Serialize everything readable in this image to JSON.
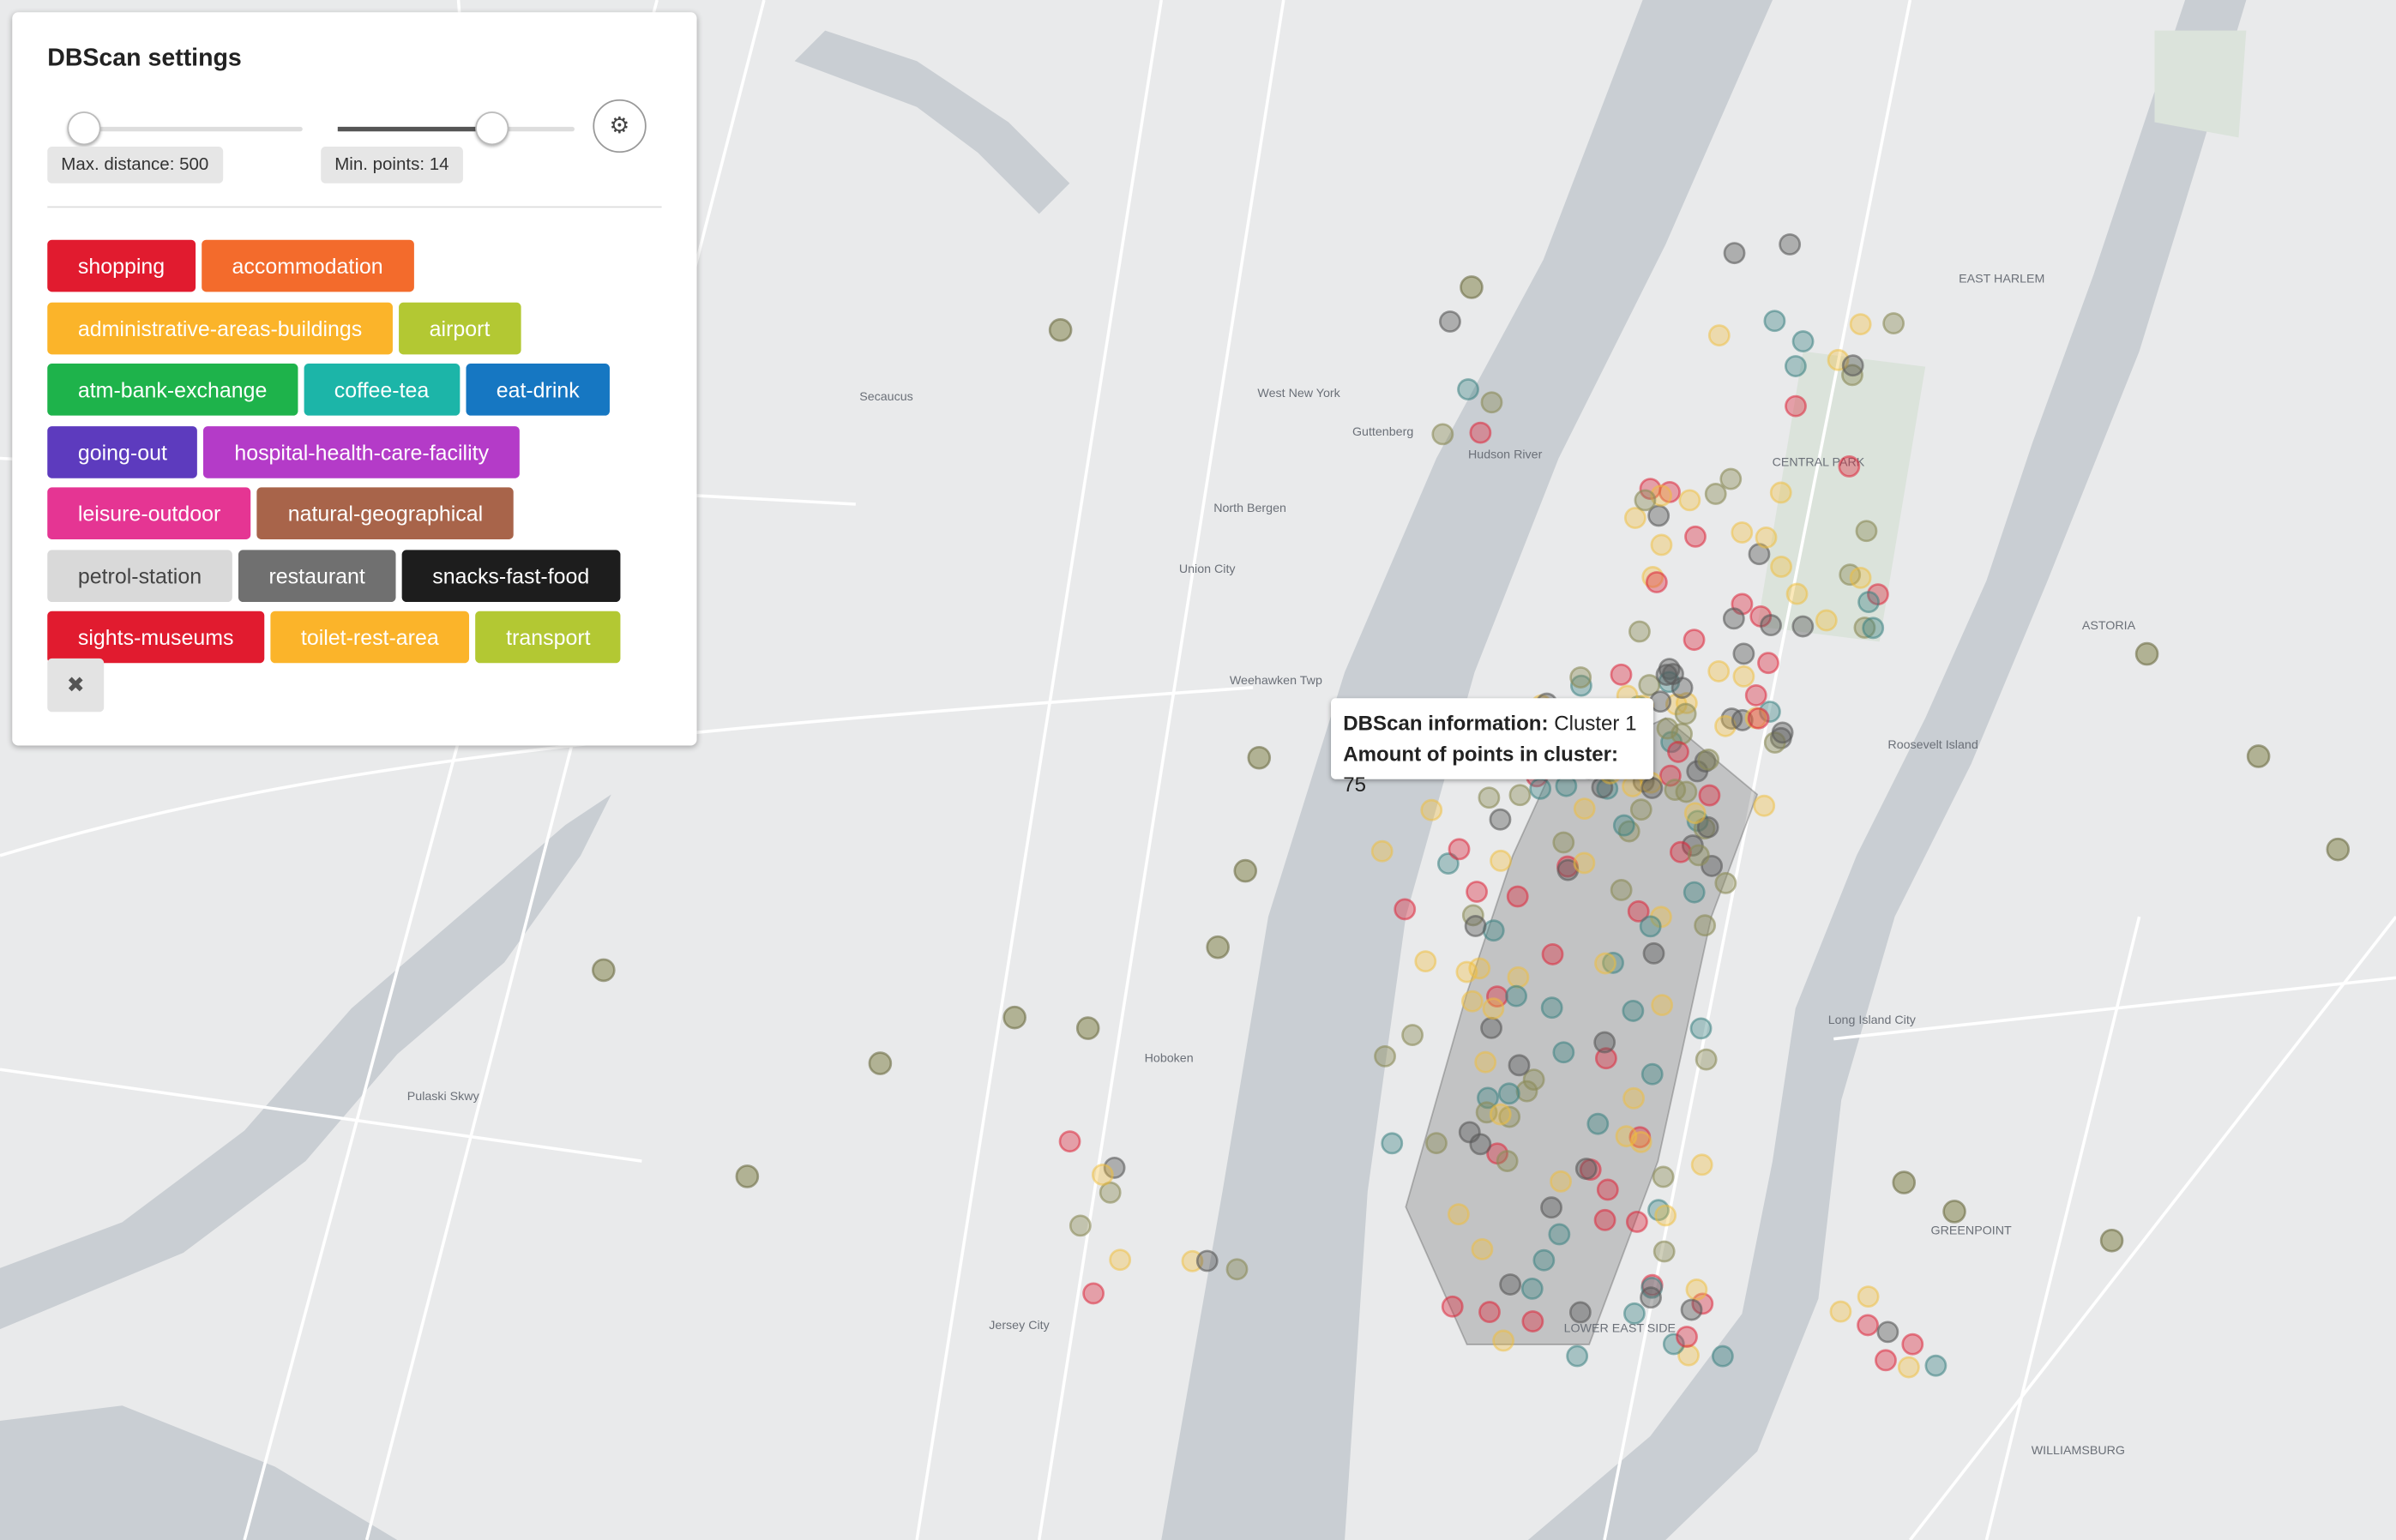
{
  "panel": {
    "title": "DBScan settings",
    "sliders": [
      {
        "label": "Max. distance: 500"
      },
      {
        "label": "Min. points: 14"
      }
    ],
    "categories": [
      {
        "name": "shopping",
        "color": "#e11b2f"
      },
      {
        "name": "accommodation",
        "color": "#f36b2c"
      },
      {
        "name": "administrative-areas-buildings",
        "color": "#fbb42a"
      },
      {
        "name": "airport",
        "color": "#b3c833"
      },
      {
        "name": "atm-bank-exchange",
        "color": "#1eb34b"
      },
      {
        "name": "coffee-tea",
        "color": "#1cb5a8"
      },
      {
        "name": "eat-drink",
        "color": "#1677c2"
      },
      {
        "name": "going-out",
        "color": "#5d3bbe"
      },
      {
        "name": "hospital-health-care-facility",
        "color": "#b43bc8"
      },
      {
        "name": "leisure-outdoor",
        "color": "#e53593"
      },
      {
        "name": "natural-geographical",
        "color": "#a8644a"
      },
      {
        "name": "petrol-station",
        "color": "#d9d9d9"
      },
      {
        "name": "restaurant",
        "color": "#707070"
      },
      {
        "name": "snacks-fast-food",
        "color": "#1d1d1d"
      },
      {
        "name": "sights-museums",
        "color": "#e11b2f"
      },
      {
        "name": "toilet-rest-area",
        "color": "#fbb42a"
      },
      {
        "name": "transport",
        "color": "#b3c833"
      }
    ],
    "close": "✖"
  },
  "tooltip": {
    "lines": [
      {
        "key": "DBScan information:",
        "value": "Cluster 1"
      },
      {
        "key": "Amount of points in cluster:",
        "value": "75"
      }
    ]
  },
  "map": {
    "labels": [
      "North Bergen",
      "West New York",
      "Union City",
      "Weehawken Twp",
      "Hoboken",
      "Jersey City",
      "Secaucus",
      "Guttenberg",
      "Hudson River",
      "CENTRAL PARK",
      "EAST HARLEM",
      "ASTORIA",
      "Long Island City",
      "WILLIAMSBURG",
      "Roosevelt Island",
      "Pulaski Skwy",
      "GREENPOINT",
      "LOWER EAST SIDE"
    ]
  }
}
